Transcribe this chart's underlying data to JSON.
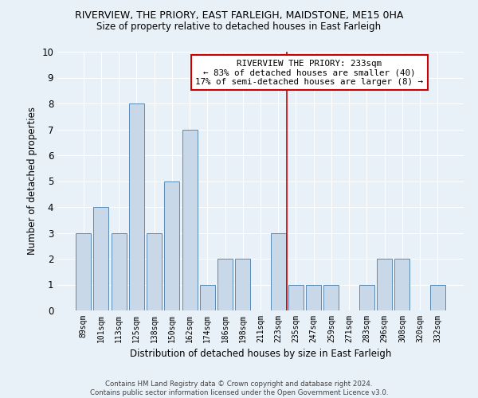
{
  "title": "RIVERVIEW, THE PRIORY, EAST FARLEIGH, MAIDSTONE, ME15 0HA",
  "subtitle": "Size of property relative to detached houses in East Farleigh",
  "xlabel": "Distribution of detached houses by size in East Farleigh",
  "ylabel": "Number of detached properties",
  "categories": [
    "89sqm",
    "101sqm",
    "113sqm",
    "125sqm",
    "138sqm",
    "150sqm",
    "162sqm",
    "174sqm",
    "186sqm",
    "198sqm",
    "211sqm",
    "223sqm",
    "235sqm",
    "247sqm",
    "259sqm",
    "271sqm",
    "283sqm",
    "296sqm",
    "308sqm",
    "320sqm",
    "332sqm"
  ],
  "values": [
    3,
    4,
    3,
    8,
    3,
    5,
    7,
    1,
    2,
    2,
    0,
    3,
    1,
    1,
    1,
    0,
    1,
    2,
    2,
    0,
    1
  ],
  "bar_color": "#c8d8e8",
  "bar_edge_color": "#5a8ab5",
  "background_color": "#e8f0f8",
  "grid_color": "#ffffff",
  "vline_x_index": 12,
  "vline_color": "#cc0000",
  "annotation_title": "RIVERVIEW THE PRIORY: 233sqm",
  "annotation_line1": "← 83% of detached houses are smaller (40)",
  "annotation_line2": "17% of semi-detached houses are larger (8) →",
  "annotation_box_color": "#cc0000",
  "ylim": [
    0,
    10
  ],
  "yticks": [
    0,
    1,
    2,
    3,
    4,
    5,
    6,
    7,
    8,
    9,
    10
  ],
  "footer": "Contains HM Land Registry data © Crown copyright and database right 2024.\nContains public sector information licensed under the Open Government Licence v3.0."
}
